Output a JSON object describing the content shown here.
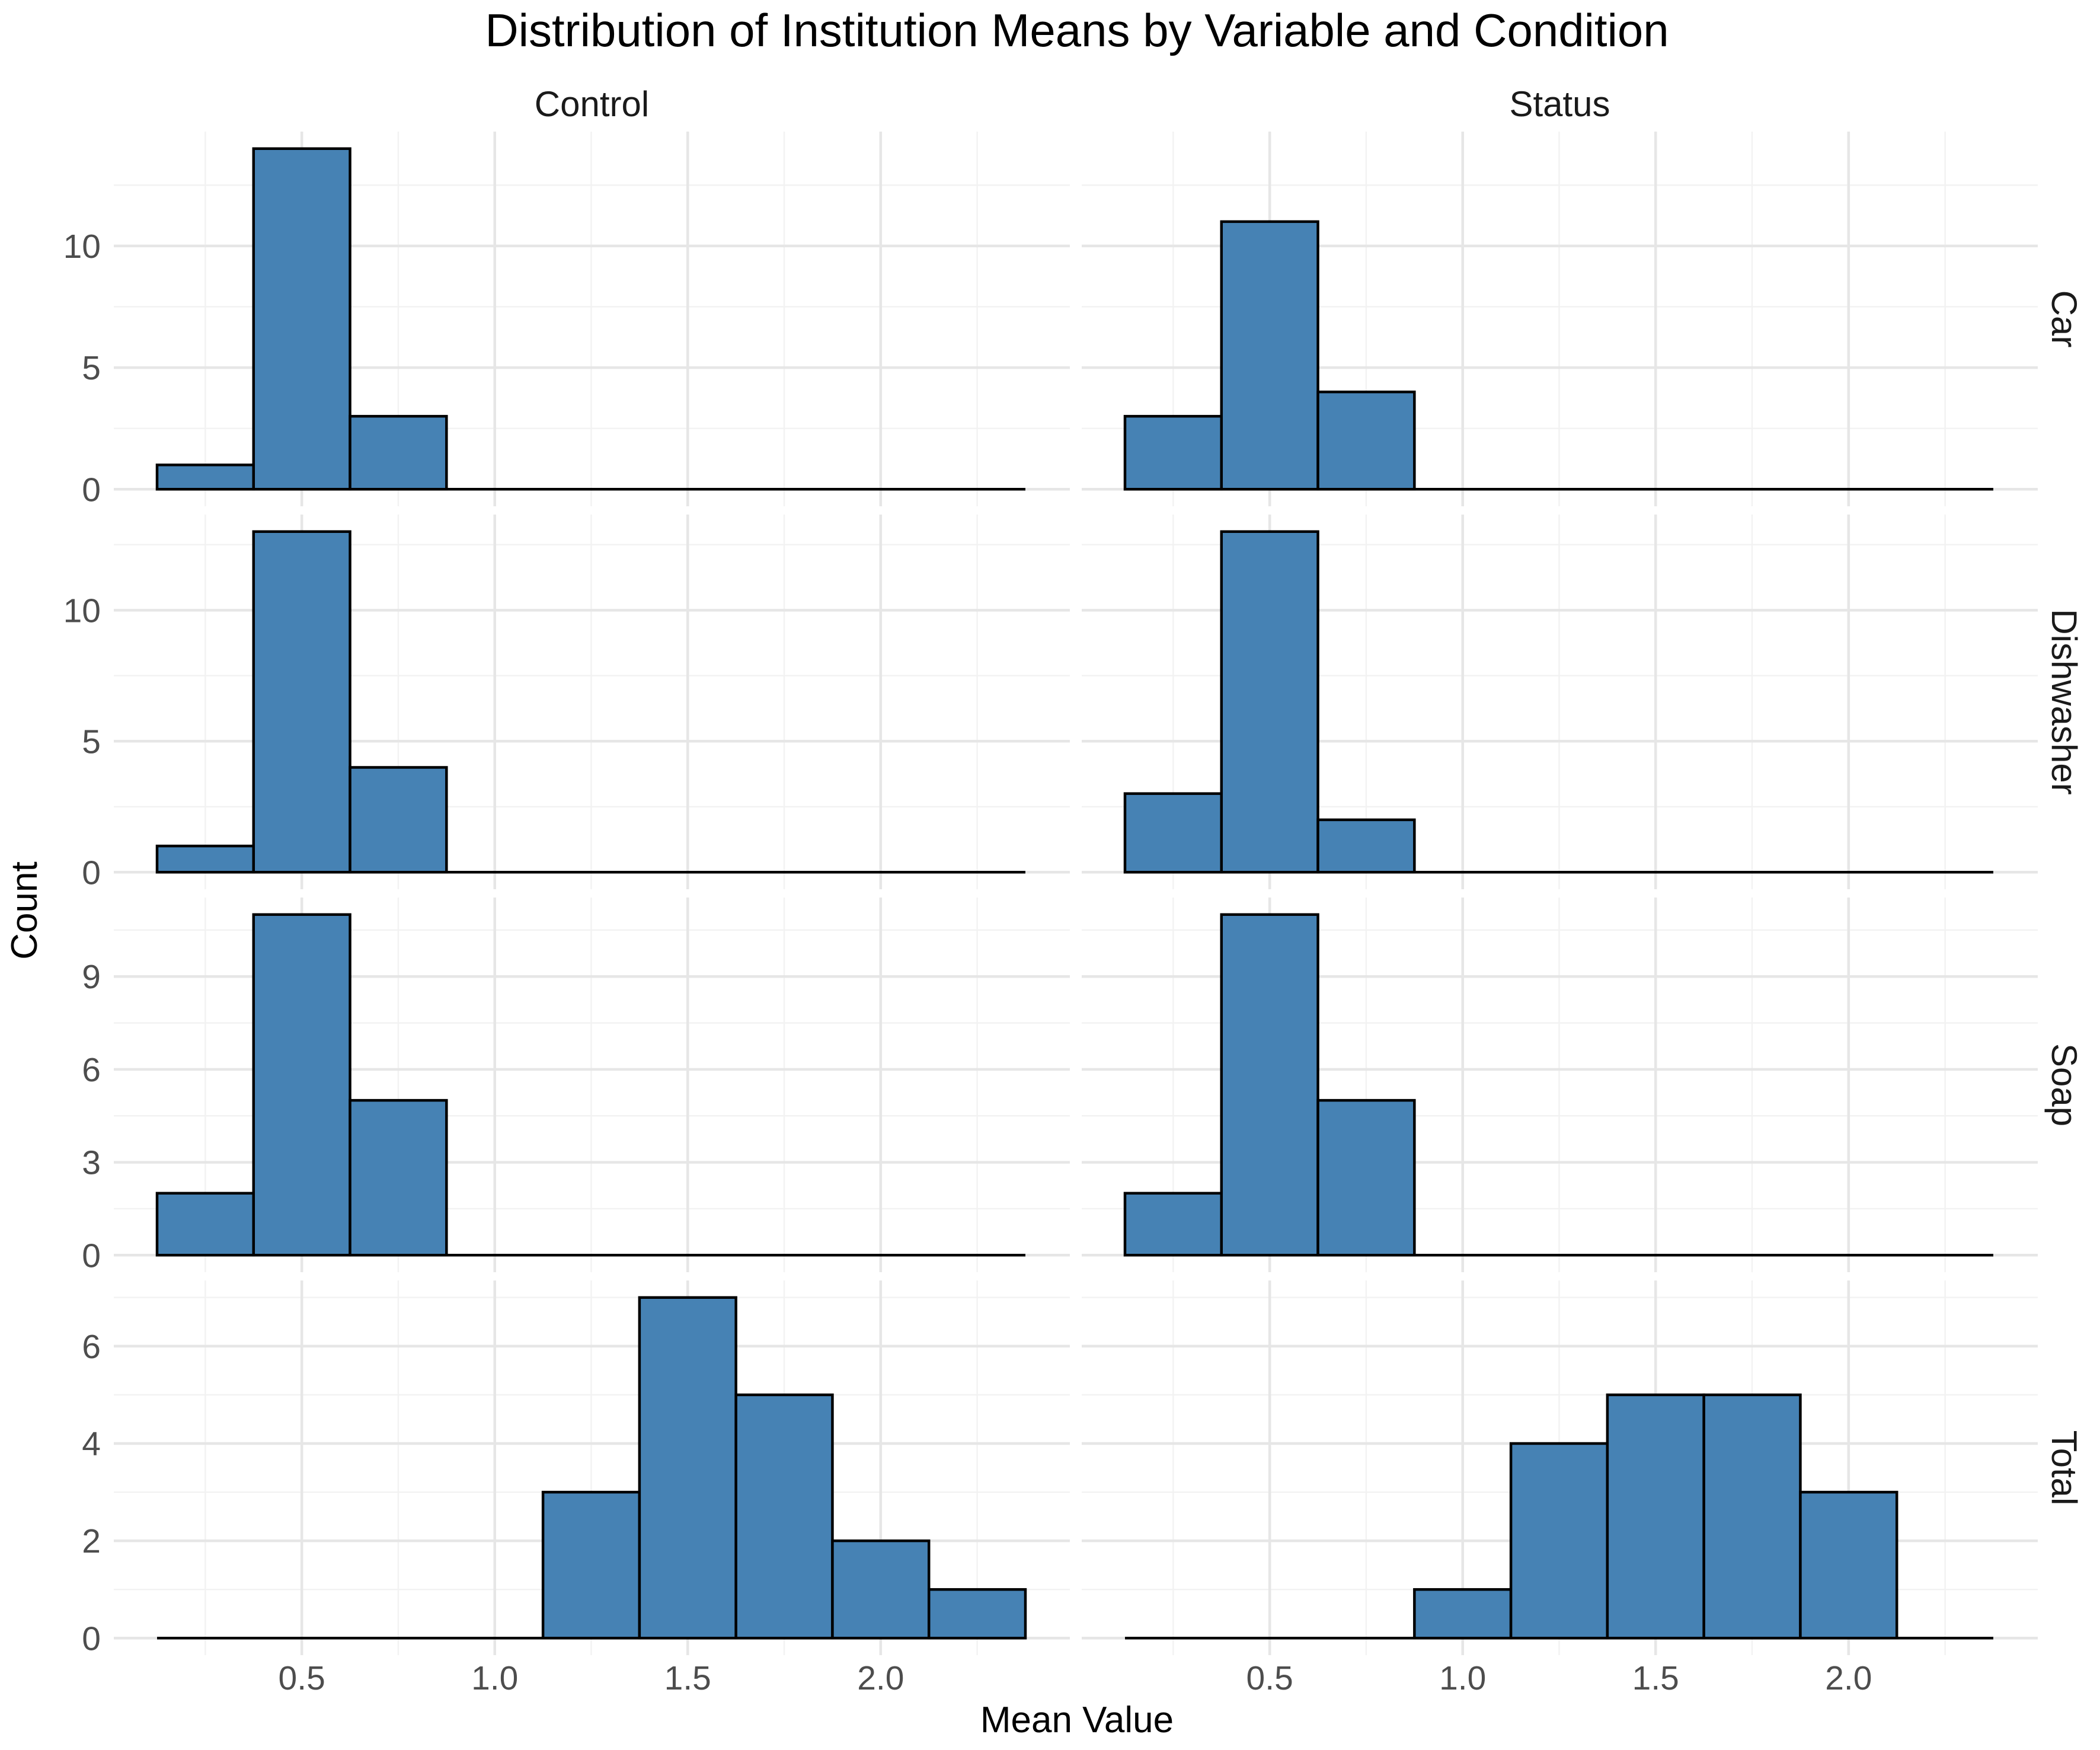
{
  "chart_data": {
    "type": "bar",
    "subtype": "faceted histogram",
    "title": "Distribution of Institution Means by Variable and Condition",
    "xlabel": "Mean Value",
    "ylabel": "Count",
    "fill_color": "#4682B4",
    "outline_color": "#000000",
    "grid": true,
    "bin_width": 0.25,
    "bin_centers": [
      0.25,
      0.5,
      0.75,
      1.0,
      1.25,
      1.5,
      1.75,
      2.0,
      2.25
    ],
    "xlim": [
      0.125,
      2.375
    ],
    "x_ticks": [
      "0.5",
      "1.0",
      "1.5",
      "2.0"
    ],
    "columns": [
      "Control",
      "Status"
    ],
    "rows": [
      {
        "name": "Car",
        "ylim": [
          0,
          14
        ],
        "y_ticks": [
          "0",
          "5",
          "10"
        ]
      },
      {
        "name": "Dishwasher",
        "ylim": [
          0,
          13
        ],
        "y_ticks": [
          "0",
          "5",
          "10"
        ]
      },
      {
        "name": "Soap",
        "ylim": [
          0,
          11
        ],
        "y_ticks": [
          "0",
          "3",
          "6",
          "9"
        ]
      },
      {
        "name": "Total",
        "ylim": [
          0,
          7
        ],
        "y_ticks": [
          "0",
          "2",
          "4",
          "6"
        ]
      }
    ],
    "panels": [
      {
        "row": "Car",
        "column": "Control",
        "counts": [
          1,
          14,
          3,
          0,
          0,
          0,
          0,
          0,
          0
        ]
      },
      {
        "row": "Car",
        "column": "Status",
        "counts": [
          3,
          11,
          4,
          0,
          0,
          0,
          0,
          0,
          0
        ]
      },
      {
        "row": "Dishwasher",
        "column": "Control",
        "counts": [
          1,
          13,
          4,
          0,
          0,
          0,
          0,
          0,
          0
        ]
      },
      {
        "row": "Dishwasher",
        "column": "Status",
        "counts": [
          3,
          13,
          2,
          0,
          0,
          0,
          0,
          0,
          0
        ]
      },
      {
        "row": "Soap",
        "column": "Control",
        "counts": [
          2,
          11,
          5,
          0,
          0,
          0,
          0,
          0,
          0
        ]
      },
      {
        "row": "Soap",
        "column": "Status",
        "counts": [
          2,
          11,
          5,
          0,
          0,
          0,
          0,
          0,
          0
        ]
      },
      {
        "row": "Total",
        "column": "Control",
        "counts": [
          0,
          0,
          0,
          0,
          3,
          7,
          5,
          2,
          1
        ]
      },
      {
        "row": "Total",
        "column": "Status",
        "counts": [
          0,
          0,
          0,
          1,
          4,
          5,
          5,
          3,
          0
        ]
      }
    ]
  }
}
